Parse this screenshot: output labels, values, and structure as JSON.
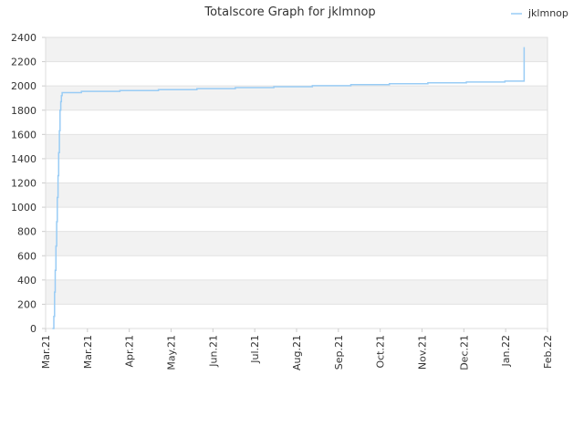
{
  "chart_data": {
    "type": "line",
    "title": "Totalscore Graph for jklmnop",
    "xlabel": "",
    "ylabel": "",
    "x_ticks": [
      "Mar.21",
      "Mar.21",
      "Apr.21",
      "May.21",
      "Jun.21",
      "Jul.21",
      "Aug.21",
      "Sep.21",
      "Oct.21",
      "Nov.21",
      "Dec.21",
      "Jan.22",
      "Feb.22"
    ],
    "x_range_days": [
      0,
      365
    ],
    "ylim": [
      0,
      2400
    ],
    "y_ticks": [
      0,
      200,
      400,
      600,
      800,
      1000,
      1200,
      1400,
      1600,
      1800,
      2000,
      2200,
      2400
    ],
    "grid": "horizontal, alternating bands",
    "legend_position": "top-right",
    "series": [
      {
        "name": "jklmnop",
        "color": "#99ccf5",
        "step": true,
        "x_days": [
          5,
          6,
          6.5,
          7,
          7.5,
          8,
          8.5,
          9,
          9.5,
          10,
          10.5,
          11,
          11.5,
          12,
          26,
          54,
          82,
          110,
          138,
          166,
          194,
          222,
          250,
          278,
          306,
          334,
          348,
          348
        ],
        "y": [
          0,
          100,
          300,
          480,
          680,
          880,
          1080,
          1260,
          1450,
          1630,
          1800,
          1870,
          1920,
          1945,
          1955,
          1962,
          1970,
          1978,
          1986,
          1994,
          2002,
          2010,
          2018,
          2025,
          2032,
          2040,
          2040,
          2320
        ]
      }
    ]
  }
}
